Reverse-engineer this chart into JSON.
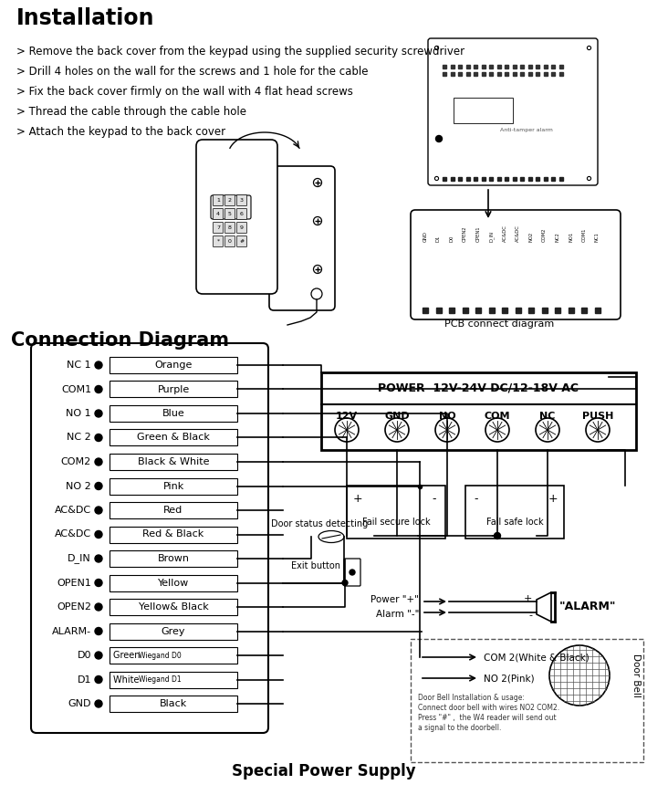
{
  "title": "Installation",
  "bg_color": "#ffffff",
  "install_bullets": [
    "> Remove the back cover from the keypad using the supplied security screwdriver",
    "> Drill 4 holes on the wall for the screws and 1 hole for the cable",
    "> Fix the back cover firmly on the wall with 4 flat head screws",
    "> Thread the cable through the cable hole",
    "> Attach the keypad to the back cover"
  ],
  "pcb_label": "PCB connect diagram",
  "connection_title": "Connection Diagram",
  "left_labels": [
    "NC 1",
    "COM1",
    "NO 1",
    "NC 2",
    "COM2",
    "NO 2",
    "AC&DC",
    "AC&DC",
    "D_IN",
    "OPEN1",
    "OPEN2",
    "ALARM-",
    "D0",
    "D1",
    "GND"
  ],
  "wire_labels": [
    "Orange",
    "Purple",
    "Blue",
    "Green & Black",
    "Black & White",
    "Pink",
    "Red",
    "Red & Black",
    "Brown",
    "Yellow",
    "Yellow& Black",
    "Grey",
    "Green Wiegand D0",
    "White Wiegand D1",
    "Black"
  ],
  "wire_label_fontsizes": [
    8,
    8,
    8,
    8,
    8,
    8,
    8,
    8,
    8,
    8,
    8,
    8,
    7,
    7,
    8
  ],
  "power_box_title": "POWER  12V-24V DC/12-18V AC",
  "power_terminals": [
    "12V",
    "GND",
    "NO",
    "COM",
    "NC",
    "PUSH"
  ],
  "fail_secure": "Fail secure lock",
  "fail_safe": "Fail safe lock",
  "alarm_label": "\"ALARM\"",
  "power_plus": "Power \"+\"",
  "alarm_minus": "Alarm \"-\"",
  "door_status": "Door status detecting",
  "exit_button": "Exit button",
  "doorbell_title": "COM 2(White & Black)",
  "doorbell_sub": "NO 2(Pink)",
  "doorbell_note": "Door Bell Installation & usage:\nConnect door bell with wires NO2 COM2.\nPress \"#\" ,  the W4 reader will send out\na signal to the doorbell.",
  "door_bell_label": "Door Bell",
  "special_power": "Special Power Supply"
}
